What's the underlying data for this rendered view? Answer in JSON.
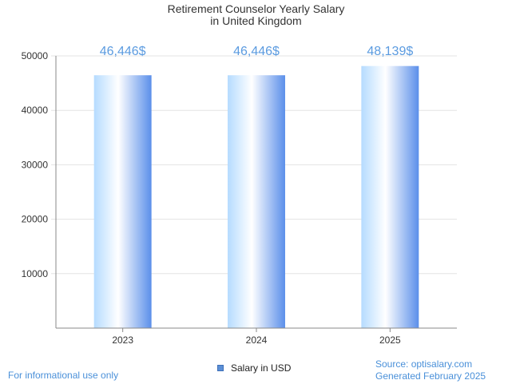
{
  "chart_data": {
    "type": "bar",
    "title_line1": "Retirement Counselor Yearly Salary",
    "title_line2": "in United Kingdom",
    "categories": [
      "2023",
      "2024",
      "2025"
    ],
    "series": [
      {
        "name": "Salary in USD",
        "values": [
          46446,
          46446,
          48139
        ]
      }
    ],
    "data_labels": [
      "46,446$",
      "46,446$",
      "48,139$"
    ],
    "ylim": [
      0,
      50000
    ],
    "yticks": [
      10000,
      20000,
      30000,
      40000,
      50000
    ],
    "ytick_labels": [
      "10000",
      "20000",
      "30000",
      "40000",
      "50000"
    ],
    "grid": true,
    "legend_position": "bottom-center",
    "colors": {
      "bar_light": "#ffffff",
      "bar_mid": "#b5dbff",
      "bar_dark": "#5b8fea",
      "label": "#5b9be0"
    }
  },
  "footer": {
    "left": "For informational use only",
    "source": "Source: optisalary.com",
    "generated": "Generated February 2025"
  }
}
